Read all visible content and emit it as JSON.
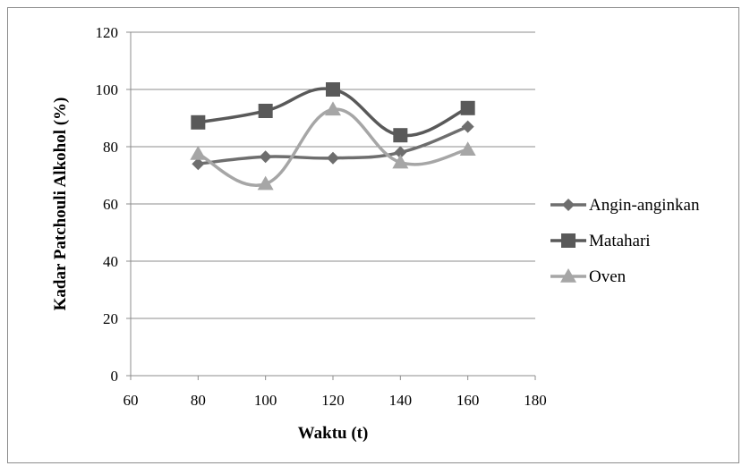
{
  "chart_data": {
    "type": "scatter",
    "title": "",
    "xlabel": "Waktu (t)",
    "ylabel": "Kadar Patchouli Alkohol (%)",
    "xlim": [
      60,
      180
    ],
    "ylim": [
      0,
      120
    ],
    "xticks": [
      60,
      80,
      100,
      120,
      140,
      160,
      180
    ],
    "yticks": [
      0,
      20,
      40,
      60,
      80,
      100,
      120
    ],
    "grid": "horizontal",
    "legend_position": "right",
    "smoothed_lines": true,
    "series": [
      {
        "name": "Angin-anginkan",
        "marker": "diamond",
        "color": "#6e6e6e",
        "x": [
          80,
          100,
          120,
          140,
          160
        ],
        "y": [
          74,
          76.5,
          76,
          78,
          87
        ]
      },
      {
        "name": "Matahari",
        "marker": "square",
        "color": "#595959",
        "x": [
          80,
          100,
          120,
          140,
          160
        ],
        "y": [
          88.5,
          92.5,
          100,
          84,
          93.5
        ]
      },
      {
        "name": "Oven",
        "marker": "triangle",
        "color": "#a6a6a6",
        "x": [
          80,
          100,
          120,
          140,
          160
        ],
        "y": [
          77.5,
          67,
          93,
          74.5,
          79
        ]
      }
    ]
  }
}
